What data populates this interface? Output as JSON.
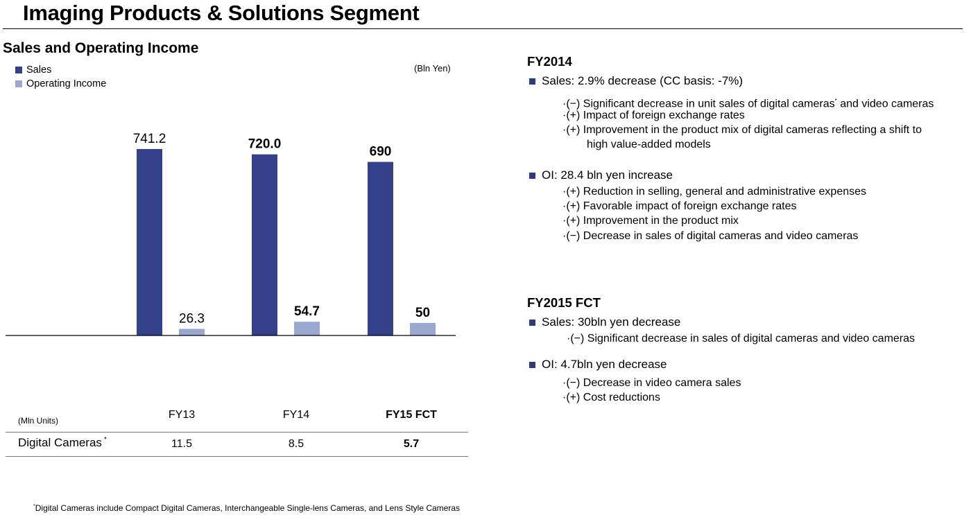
{
  "page": {
    "title": "Imaging Products & Solutions Segment",
    "subtitle": "Sales and Operating Income",
    "unit": "(Bln Yen)"
  },
  "colors": {
    "sales": "#32418a",
    "operating_income": "#9aa7cf",
    "bullet": "#2e3a82"
  },
  "legend": {
    "sales": "Sales",
    "operating_income": "Operating Income"
  },
  "chart_data": {
    "type": "bar",
    "categories": [
      "FY13",
      "FY14",
      "FY15 FCT"
    ],
    "series": [
      {
        "name": "Sales",
        "values": [
          741.2,
          720.0,
          690
        ],
        "labels": [
          "741.2",
          "720.0",
          "690"
        ]
      },
      {
        "name": "Operating Income",
        "values": [
          26.3,
          54.7,
          50
        ],
        "labels": [
          "26.3",
          "54.7",
          "50"
        ]
      }
    ],
    "bold_label_categories": [
      "FY14",
      "FY15 FCT"
    ],
    "unit": "(Bln Yen)",
    "legend_position": "top-left",
    "grid": false,
    "ylim": [
      0,
      1000
    ]
  },
  "table": {
    "unit": "(Mln Units)",
    "headers": [
      "FY13",
      "FY14",
      "FY15 FCT"
    ],
    "row_label": "Digital Cameras",
    "row_mark": "*",
    "values": [
      "11.5",
      "8.5",
      "5.7"
    ]
  },
  "footnote": {
    "mark": "*",
    "text": "Digital Cameras include Compact Digital Cameras, Interchangeable Single-lens Cameras, and Lens Style Cameras"
  },
  "fy2014": {
    "heading": "FY2014",
    "sales_bullet": "Sales: 2.9% decrease (CC basis:  -7%)",
    "sales_items": [
      "·(−)  Significant decrease in unit sales of digital cameras",
      "·(+)  Impact of foreign exchange rates",
      "·(+)  Improvement in the product mix of digital cameras reflecting a shift to",
      "high value-added models"
    ],
    "sales_item0_mark": "*",
    "sales_item0_tail": " and video cameras",
    "oi_bullet": "OI: 28.4 bln yen increase",
    "oi_items": [
      "·(+)  Reduction in selling, general and administrative expenses",
      "·(+)  Favorable impact of foreign exchange rates",
      "·(+)  Improvement in the product mix",
      "·(−)  Decrease in sales of digital cameras and video cameras"
    ]
  },
  "fy2015": {
    "heading": "FY2015 FCT",
    "sales_bullet": "Sales: 30bln yen decrease",
    "sales_items": [
      "·(−) Significant decrease in sales of digital cameras and video cameras"
    ],
    "oi_bullet": "OI: 4.7bln yen decrease",
    "oi_items": [
      "·(−)  Decrease in video camera sales",
      "·(+) Cost reductions"
    ]
  }
}
